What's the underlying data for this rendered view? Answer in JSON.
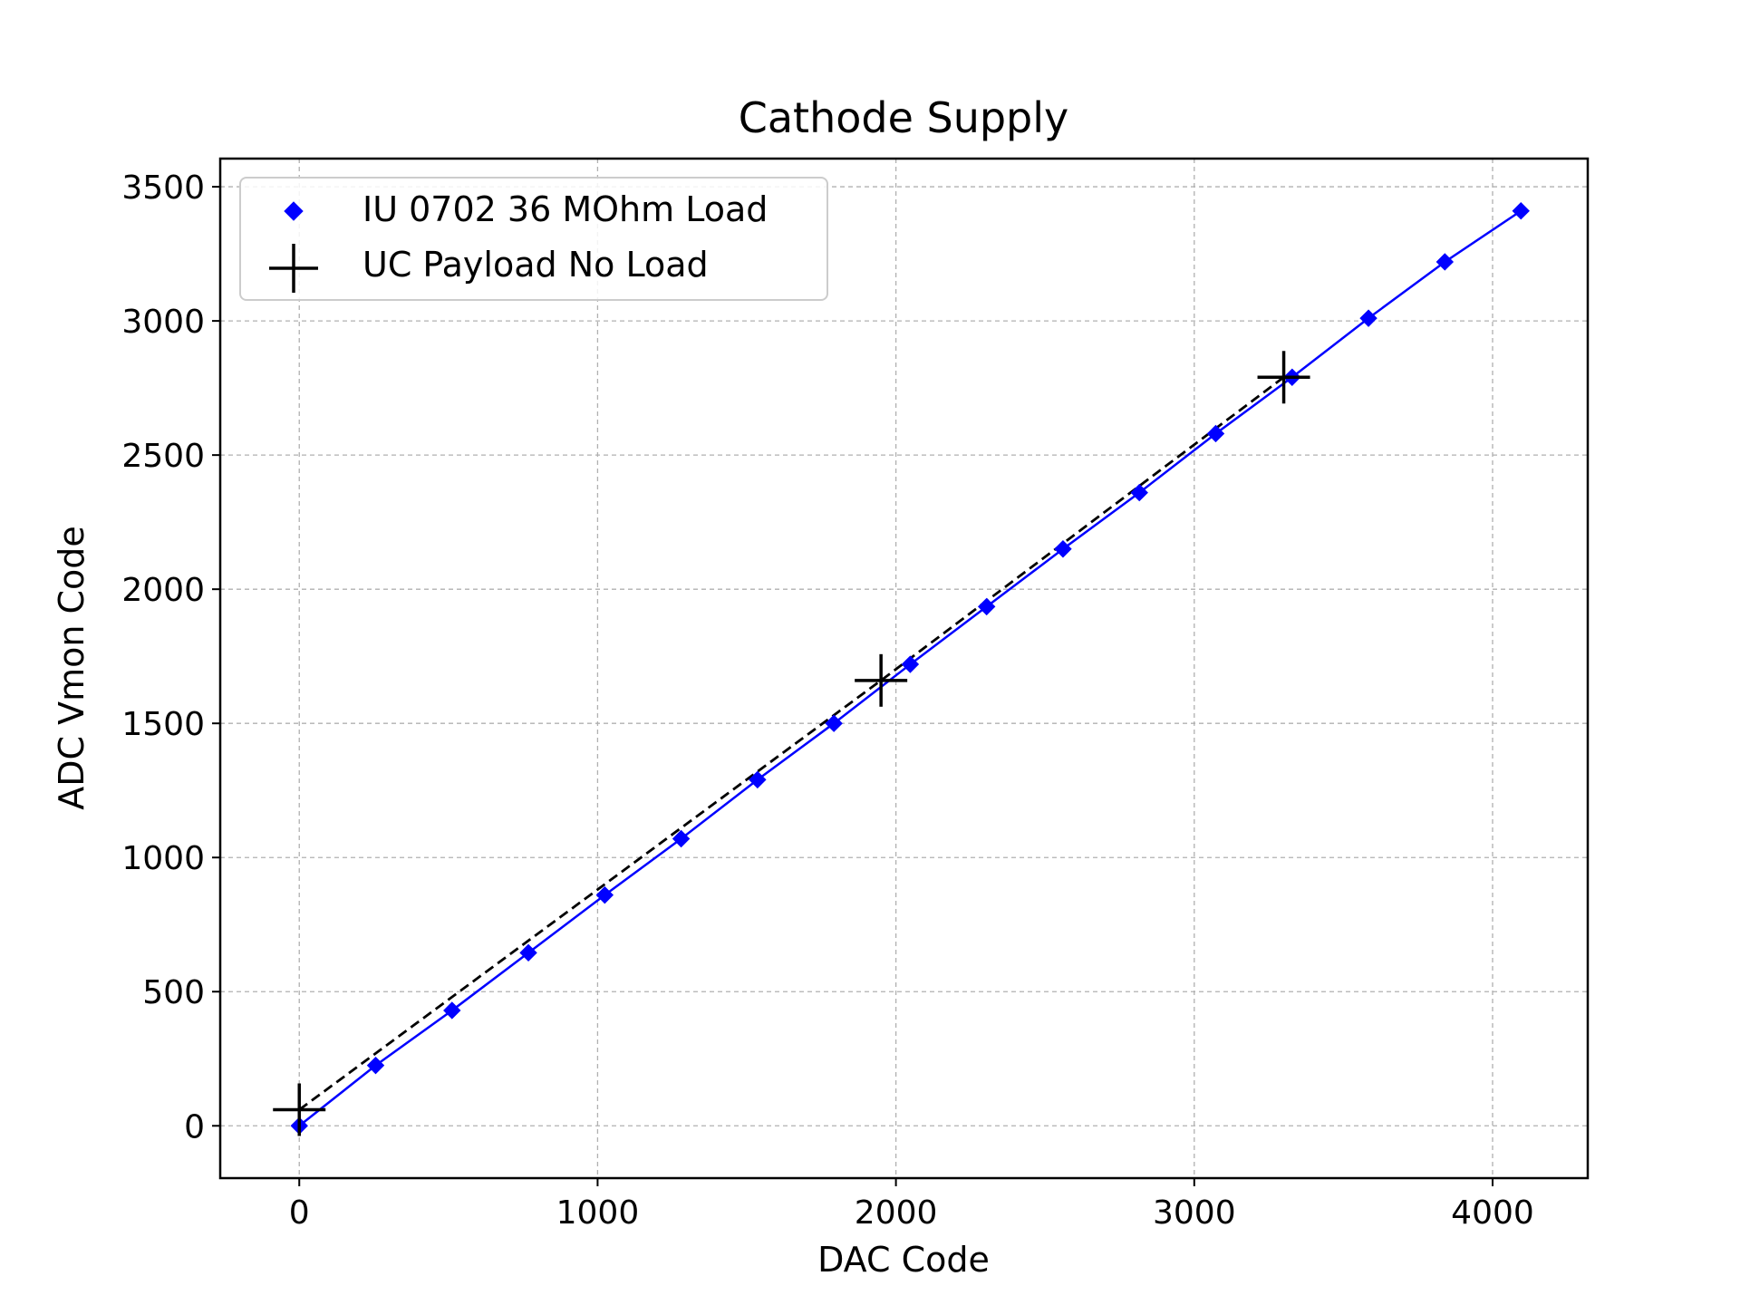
{
  "chart_data": {
    "type": "scatter",
    "title": "Cathode Supply",
    "xlabel": "DAC Code",
    "ylabel": "ADC Vmon Code",
    "xlim": [
      -265,
      4319
    ],
    "ylim": [
      -195,
      3605
    ],
    "xticks": [
      0,
      1000,
      2000,
      3000,
      4000
    ],
    "yticks": [
      0,
      500,
      1000,
      1500,
      2000,
      2500,
      3000,
      3500
    ],
    "xtick_labels": [
      "0",
      "1000",
      "2000",
      "3000",
      "4000"
    ],
    "ytick_labels": [
      "0",
      "500",
      "1000",
      "1500",
      "2000",
      "2500",
      "3000",
      "3500"
    ],
    "grid": true,
    "grid_style": "dashed",
    "legend_position": "top-left",
    "series": [
      {
        "name": "IU 0702 36 MOhm Load",
        "color": "#0000ff",
        "marker": "diamond",
        "line": "solid",
        "x": [
          0,
          256,
          512,
          768,
          1024,
          1280,
          1536,
          1792,
          2048,
          2304,
          2560,
          2816,
          3072,
          3328,
          3584,
          3840,
          4095
        ],
        "y": [
          0,
          225,
          430,
          645,
          860,
          1070,
          1290,
          1500,
          1720,
          1935,
          2150,
          2360,
          2580,
          2790,
          3010,
          3220,
          3410
        ]
      },
      {
        "name": "UC Payload No Load",
        "color": "#000000",
        "marker": "plus",
        "line": "dashed",
        "x": [
          0,
          1950,
          3300
        ],
        "y": [
          60,
          1660,
          2790
        ]
      }
    ]
  }
}
